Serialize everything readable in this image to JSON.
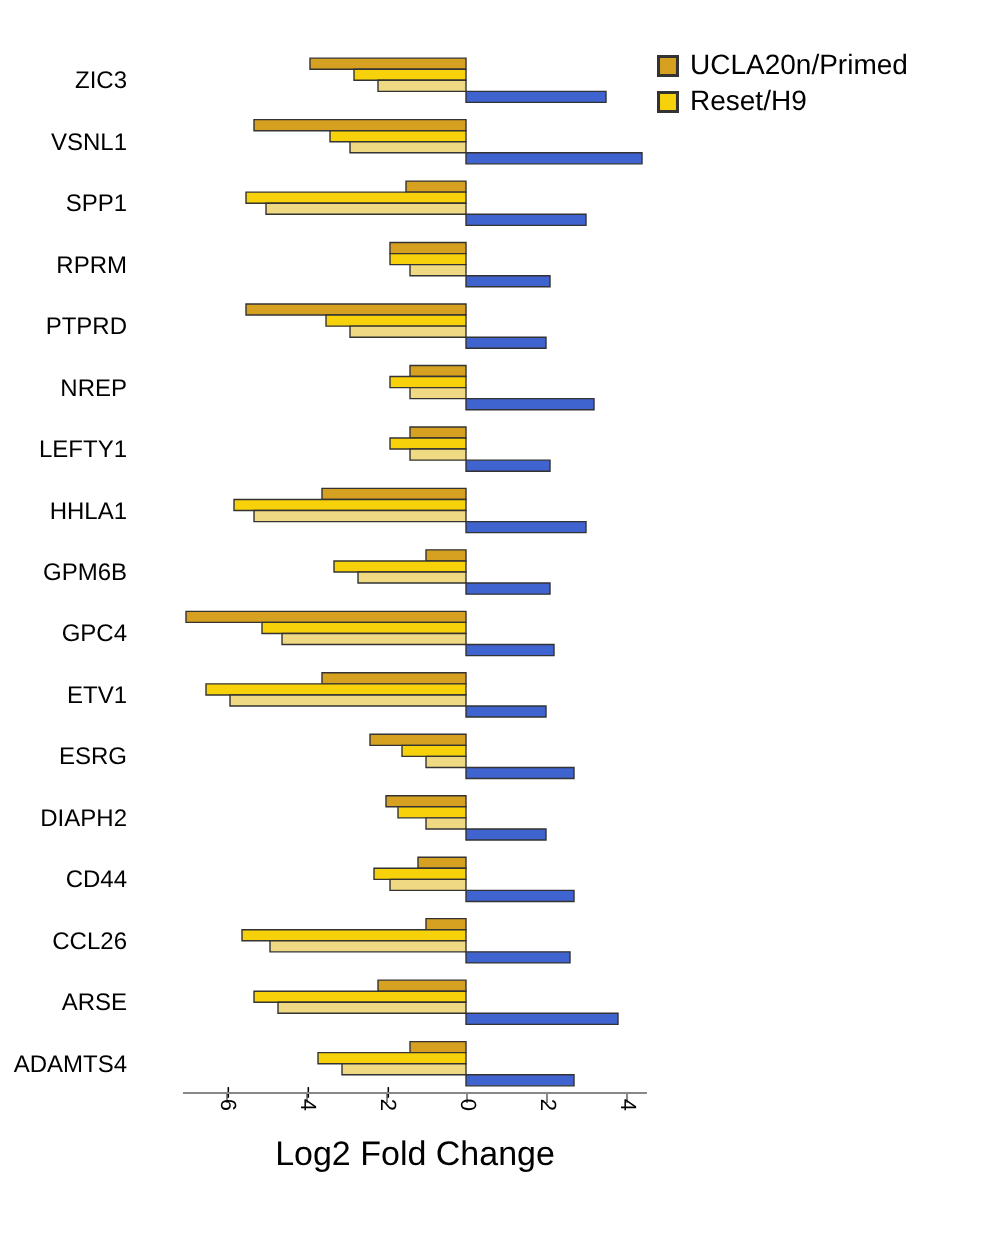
{
  "chart_data": {
    "type": "bar",
    "orientation": "horizontal",
    "xlabel": "Log2 Fold Change",
    "categories": [
      "ZIC3",
      "VSNL1",
      "SPP1",
      "RPRM",
      "PTPRD",
      "NREP",
      "LEFTY1",
      "HHLA1",
      "GPM6B",
      "GPC4",
      "ETV1",
      "ESRG",
      "DIAPH2",
      "CD44",
      "CCL26",
      "ARSE",
      "ADAMTS4"
    ],
    "series": [
      {
        "name": "UCLA20n/Primed",
        "color": "#d6a020",
        "values": [
          -3.9,
          -5.3,
          -1.5,
          -1.9,
          -5.5,
          -1.4,
          -1.4,
          -3.6,
          -1.0,
          -7.0,
          -3.6,
          -2.4,
          -2.0,
          -1.2,
          -1.0,
          -2.2,
          -1.4
        ]
      },
      {
        "name": "Reset/H9",
        "color": "#f7d10a",
        "values": [
          -2.8,
          -3.4,
          -5.5,
          -1.9,
          -3.5,
          -1.9,
          -1.9,
          -5.8,
          -3.3,
          -5.1,
          -6.5,
          -1.6,
          -1.7,
          -2.3,
          -5.6,
          -5.3,
          -3.7
        ]
      },
      {
        "color": "#efd982",
        "values": [
          -2.2,
          -2.9,
          -5.0,
          -1.4,
          -2.9,
          -1.4,
          -1.4,
          -5.3,
          -2.7,
          -4.6,
          -5.9,
          -1.0,
          -1.0,
          -1.9,
          -4.9,
          -4.7,
          -3.1
        ]
      },
      {
        "color": "#3f63cf",
        "values": [
          3.5,
          4.4,
          3.0,
          2.1,
          2.0,
          3.2,
          2.1,
          3.0,
          2.1,
          2.2,
          2.0,
          2.7,
          2.0,
          2.7,
          2.6,
          3.8,
          2.7
        ]
      }
    ],
    "xlim": [
      -7.1,
      4.5
    ],
    "xticks": [
      -6,
      -4,
      -2,
      0,
      2,
      4
    ],
    "grid": false,
    "legend": "right"
  }
}
